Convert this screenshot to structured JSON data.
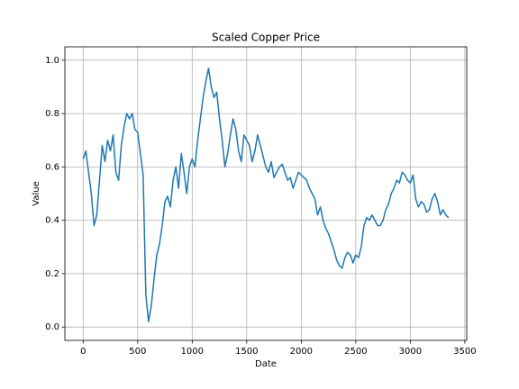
{
  "chart_data": {
    "type": "line",
    "title": "Scaled Copper Price",
    "xlabel": "Date",
    "ylabel": "Value",
    "color": "#1f77b4",
    "grid": true,
    "xlim": [
      -167.5,
      3517.5
    ],
    "ylim": [
      -0.05,
      1.05
    ],
    "xticks": [
      0,
      500,
      1000,
      1500,
      2000,
      2500,
      3000,
      3500
    ],
    "yticks": [
      {
        "value": 0,
        "label": "0.0"
      },
      0.2,
      0.4,
      0.6,
      0.8,
      {
        "value": 1,
        "label": "1.0"
      }
    ],
    "x": [
      0,
      25,
      50,
      75,
      100,
      125,
      150,
      175,
      200,
      225,
      250,
      275,
      300,
      325,
      350,
      375,
      400,
      425,
      450,
      475,
      500,
      525,
      550,
      575,
      600,
      625,
      650,
      675,
      700,
      725,
      750,
      775,
      800,
      825,
      850,
      875,
      900,
      925,
      950,
      975,
      1000,
      1025,
      1050,
      1075,
      1100,
      1125,
      1150,
      1175,
      1200,
      1225,
      1250,
      1275,
      1300,
      1325,
      1350,
      1375,
      1400,
      1425,
      1450,
      1475,
      1500,
      1525,
      1550,
      1575,
      1600,
      1625,
      1650,
      1675,
      1700,
      1725,
      1750,
      1775,
      1800,
      1825,
      1850,
      1875,
      1900,
      1925,
      1950,
      1975,
      2000,
      2025,
      2050,
      2075,
      2100,
      2125,
      2150,
      2175,
      2200,
      2225,
      2250,
      2275,
      2300,
      2325,
      2350,
      2375,
      2400,
      2425,
      2450,
      2475,
      2500,
      2525,
      2550,
      2575,
      2600,
      2625,
      2650,
      2675,
      2700,
      2725,
      2750,
      2775,
      2800,
      2825,
      2850,
      2875,
      2900,
      2925,
      2950,
      2975,
      3000,
      3025,
      3050,
      3075,
      3100,
      3125,
      3150,
      3175,
      3200,
      3225,
      3250,
      3275,
      3300,
      3325,
      3350
    ],
    "values": [
      0.63,
      0.66,
      0.58,
      0.5,
      0.38,
      0.42,
      0.55,
      0.68,
      0.62,
      0.7,
      0.66,
      0.72,
      0.58,
      0.55,
      0.68,
      0.75,
      0.8,
      0.78,
      0.8,
      0.74,
      0.73,
      0.65,
      0.57,
      0.12,
      0.02,
      0.08,
      0.18,
      0.27,
      0.31,
      0.38,
      0.47,
      0.49,
      0.45,
      0.55,
      0.6,
      0.52,
      0.65,
      0.58,
      0.5,
      0.6,
      0.63,
      0.6,
      0.7,
      0.78,
      0.86,
      0.92,
      0.97,
      0.9,
      0.86,
      0.88,
      0.78,
      0.7,
      0.6,
      0.65,
      0.72,
      0.78,
      0.74,
      0.66,
      0.62,
      0.72,
      0.7,
      0.68,
      0.62,
      0.66,
      0.72,
      0.68,
      0.64,
      0.6,
      0.58,
      0.62,
      0.56,
      0.58,
      0.6,
      0.61,
      0.58,
      0.55,
      0.56,
      0.52,
      0.55,
      0.58,
      0.57,
      0.56,
      0.55,
      0.52,
      0.5,
      0.48,
      0.42,
      0.45,
      0.4,
      0.37,
      0.35,
      0.32,
      0.29,
      0.25,
      0.23,
      0.22,
      0.26,
      0.28,
      0.27,
      0.24,
      0.27,
      0.26,
      0.3,
      0.38,
      0.41,
      0.4,
      0.42,
      0.4,
      0.38,
      0.38,
      0.4,
      0.44,
      0.46,
      0.5,
      0.52,
      0.55,
      0.54,
      0.58,
      0.57,
      0.55,
      0.54,
      0.57,
      0.48,
      0.45,
      0.47,
      0.46,
      0.43,
      0.44,
      0.48,
      0.5,
      0.47,
      0.42,
      0.44,
      0.42,
      0.41
    ]
  }
}
